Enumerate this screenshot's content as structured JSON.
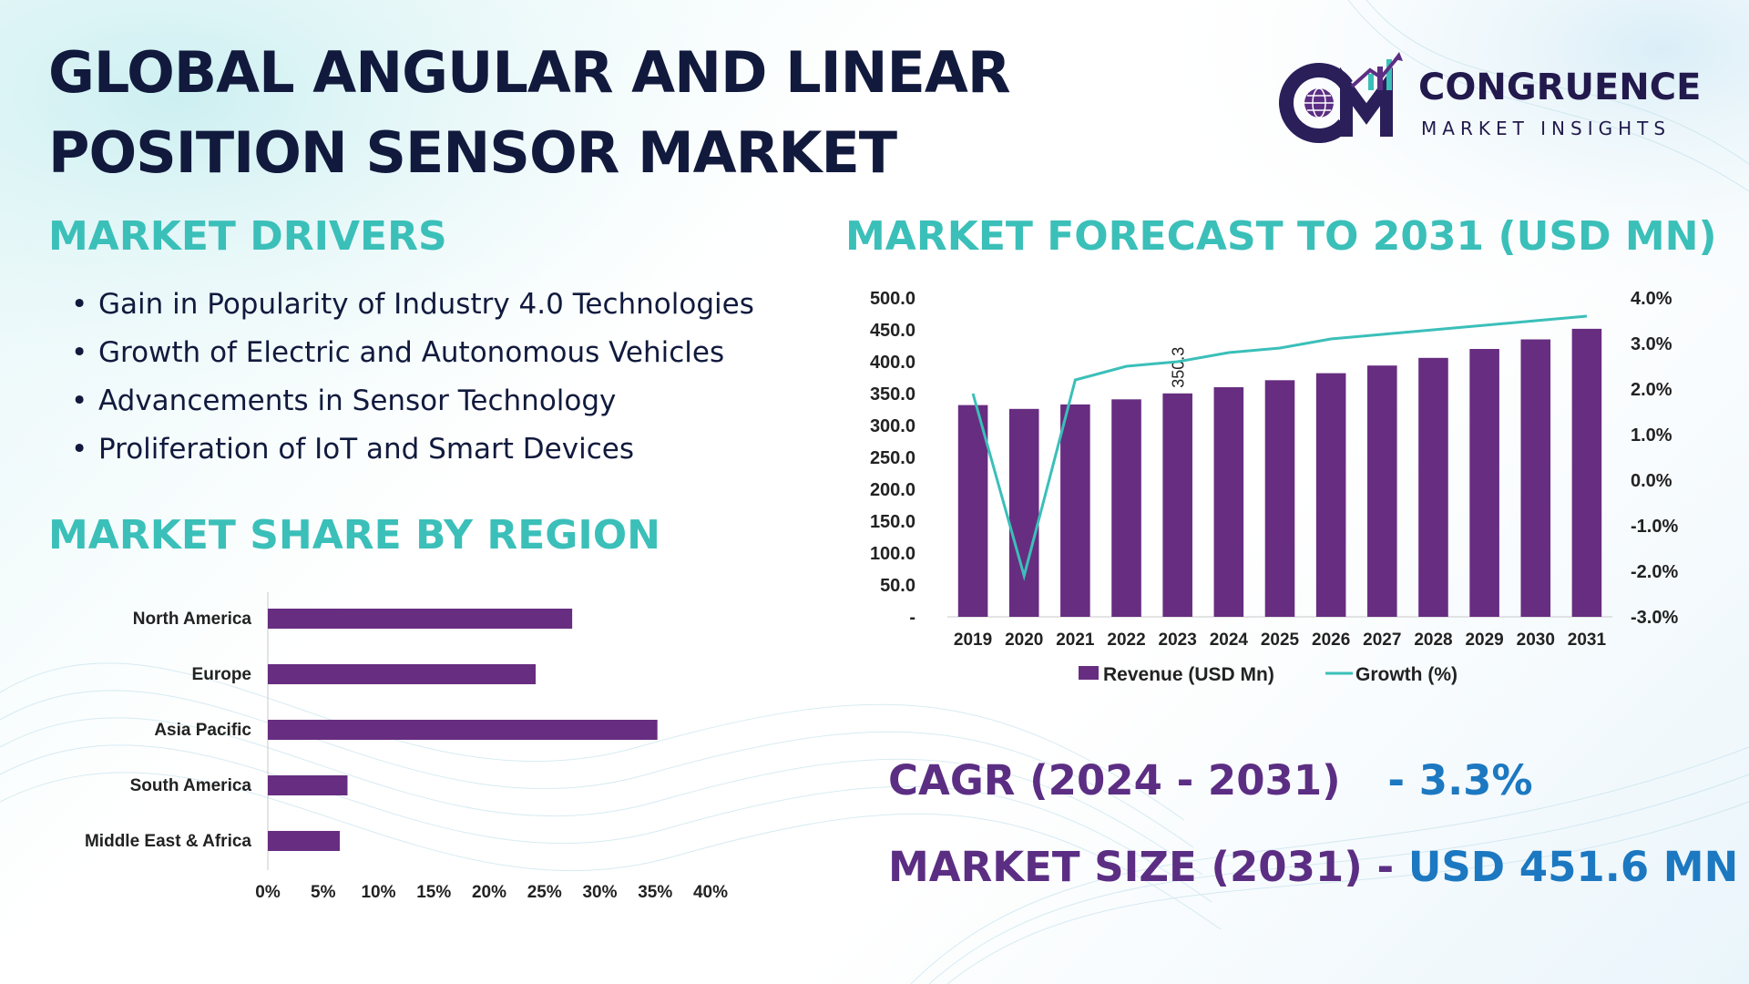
{
  "title": {
    "line1": "GLOBAL ANGULAR AND LINEAR",
    "line2": "POSITION SENSOR MARKET"
  },
  "logo": {
    "brand": "CONGRUENCE",
    "tagline": "MARKET INSIGHTS",
    "colors": {
      "primary": "#2b1f5a",
      "accent": "#3bbfb9",
      "globe": "#5b2e83"
    }
  },
  "drivers": {
    "heading": "MARKET DRIVERS",
    "items": [
      "Gain in Popularity of Industry 4.0 Technologies",
      "Growth of Electric and Autonomous Vehicles",
      "Advancements in Sensor Technology",
      "Proliferation of IoT and Smart Devices"
    ]
  },
  "share": {
    "heading": "MARKET SHARE BY REGION"
  },
  "forecast": {
    "heading": "MARKET FORECAST TO 2031 (USD MN)"
  },
  "stats": {
    "cagr_label": "CAGR (2024 - 2031)",
    "cagr_sep": "-",
    "cagr_value": "3.3%",
    "size_label": "MARKET SIZE (2031)",
    "size_sep": "-",
    "size_value": "USD 451.6 MN"
  },
  "colors": {
    "heading_teal": "#3bbfb9",
    "bar_purple": "#672d80",
    "line_teal": "#3bbfb9",
    "title_navy": "#111a3d",
    "stat_purple": "#5b2e83",
    "stat_blue": "#1c78c0"
  },
  "chart_data": [
    {
      "type": "bar",
      "orientation": "horizontal",
      "categories": [
        "North America",
        "Europe",
        "Asia Pacific",
        "South America",
        "Middle East & Africa"
      ],
      "values": [
        27.5,
        24.2,
        35.2,
        7.2,
        6.5
      ],
      "xlim": [
        0,
        40
      ],
      "xticks": [
        0,
        5,
        10,
        15,
        20,
        25,
        30,
        35,
        40
      ],
      "xtick_labels": [
        "0%",
        "5%",
        "10%",
        "15%",
        "20%",
        "25%",
        "30%",
        "35%",
        "40%"
      ],
      "grid": false,
      "color": "#672d80"
    },
    {
      "type": "bar",
      "x": [
        "2019",
        "2020",
        "2021",
        "2022",
        "2023",
        "2024",
        "2025",
        "2026",
        "2027",
        "2028",
        "2029",
        "2030",
        "2031"
      ],
      "series": [
        {
          "name": "Revenue (USD Mn)",
          "type": "bar",
          "axis": "left",
          "values": [
            332,
            326,
            333,
            341,
            350.3,
            360,
            371,
            382,
            394,
            406,
            420,
            435,
            451.6
          ],
          "color": "#672d80"
        },
        {
          "name": "Growth (%)",
          "type": "line",
          "axis": "right",
          "values": [
            1.9,
            -2.1,
            2.2,
            2.5,
            2.6,
            2.8,
            2.9,
            3.1,
            3.2,
            3.3,
            3.4,
            3.5,
            3.6
          ],
          "color": "#3bbfb9"
        }
      ],
      "data_labels": [
        {
          "x": "2023",
          "text": "350.3"
        }
      ],
      "ylim_left": [
        0,
        500
      ],
      "yticks_left": [
        "-",
        "50.0",
        "100.0",
        "150.0",
        "200.0",
        "250.0",
        "300.0",
        "350.0",
        "400.0",
        "450.0",
        "500.0"
      ],
      "ylim_right": [
        -3,
        4
      ],
      "yticks_right": [
        "-3.0%",
        "-2.0%",
        "-1.0%",
        "0.0%",
        "1.0%",
        "2.0%",
        "3.0%",
        "4.0%"
      ],
      "legend_position": "bottom",
      "grid": false
    }
  ]
}
